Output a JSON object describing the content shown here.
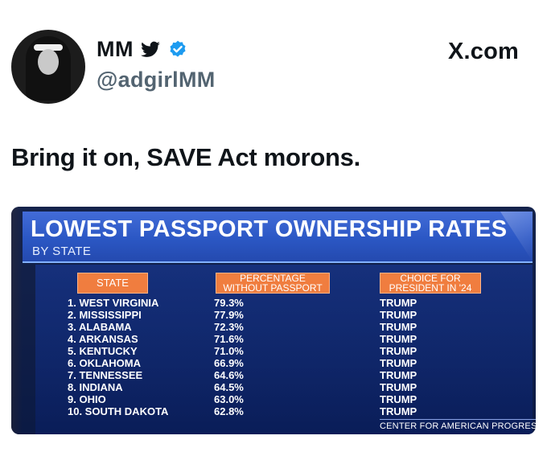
{
  "header": {
    "display_name": "MM",
    "handle": "@adgirlMM",
    "site": "X.com"
  },
  "tweet": {
    "text": "Bring it on, SAVE Act morons."
  },
  "graphic": {
    "title": "LOWEST PASSPORT OWNERSHIP RATES",
    "subtitle": "BY STATE",
    "columns": {
      "state": "STATE",
      "pct_line1": "PERCENTAGE",
      "pct_line2": "WITHOUT PASSPORT",
      "choice_line1": "CHOICE FOR",
      "choice_line2": "PRESIDENT IN '24"
    },
    "rows": [
      {
        "rank_state": "1. WEST VIRGINIA",
        "pct": "79.3%",
        "choice": "TRUMP"
      },
      {
        "rank_state": "2. MISSISSIPPI",
        "pct": "77.9%",
        "choice": "TRUMP"
      },
      {
        "rank_state": "3. ALABAMA",
        "pct": "72.3%",
        "choice": "TRUMP"
      },
      {
        "rank_state": "4. ARKANSAS",
        "pct": "71.6%",
        "choice": "TRUMP"
      },
      {
        "rank_state": "5. KENTUCKY",
        "pct": "71.0%",
        "choice": "TRUMP"
      },
      {
        "rank_state": "6. OKLAHOMA",
        "pct": "66.9%",
        "choice": "TRUMP"
      },
      {
        "rank_state": "7. TENNESSEE",
        "pct": "64.6%",
        "choice": "TRUMP"
      },
      {
        "rank_state": "8. INDIANA",
        "pct": "64.5%",
        "choice": "TRUMP"
      },
      {
        "rank_state": "9. OHIO",
        "pct": "63.0%",
        "choice": "TRUMP"
      },
      {
        "rank_state": "10. SOUTH DAKOTA",
        "pct": "62.8%",
        "choice": "TRUMP"
      }
    ],
    "source": "CENTER FOR AMERICAN PROGRESS"
  },
  "icons": {
    "bird": "twitter-bird-icon",
    "verified": "verified-badge-icon"
  },
  "colors": {
    "handle_gray": "#536471",
    "verified_blue": "#1d9bf0",
    "banner_blue": "#2451c2",
    "header_orange": "#f07a3a",
    "panel_navy": "#0c2366"
  }
}
